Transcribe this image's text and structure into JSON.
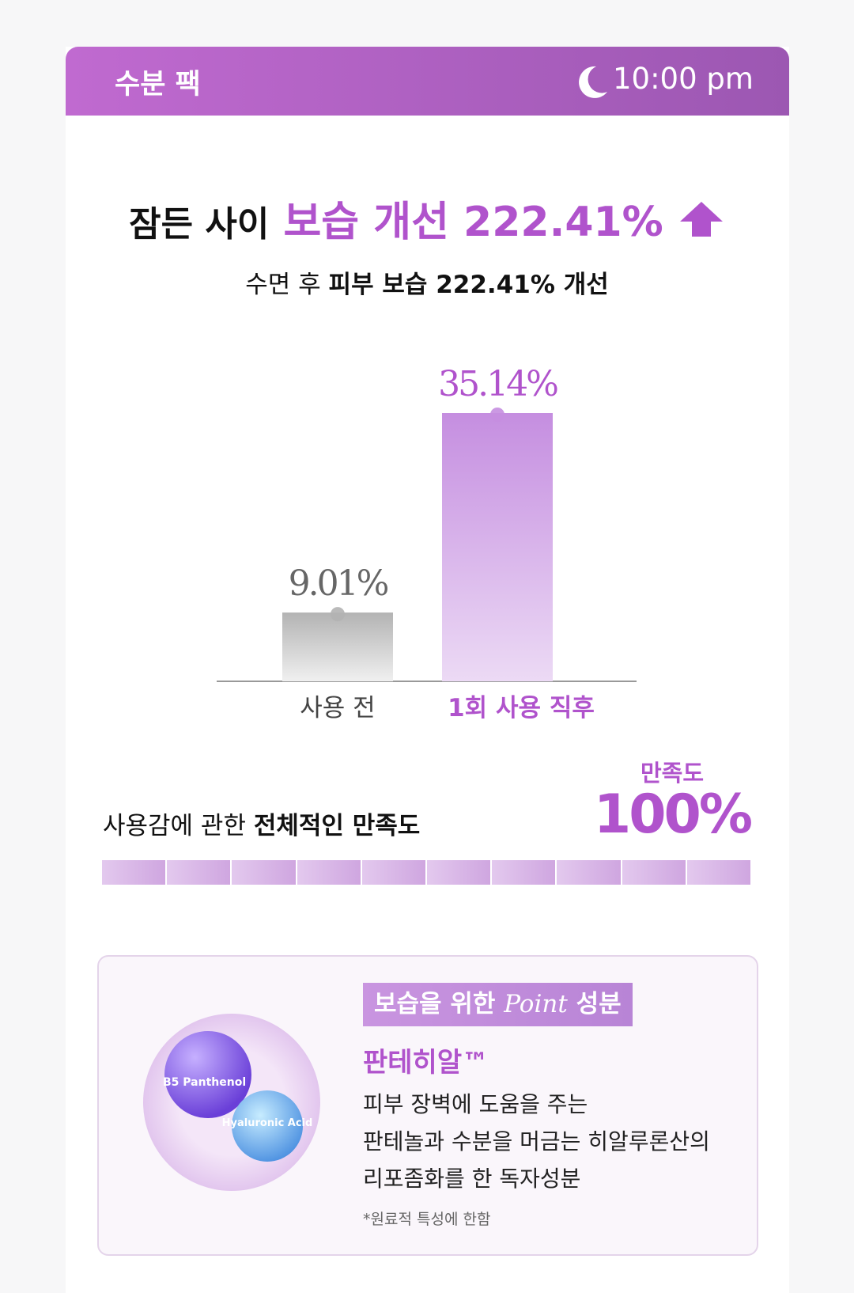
{
  "header": {
    "title": "수분 팩",
    "time": "10:00 pm"
  },
  "headline": {
    "prefix": "잠든 사이",
    "highlight": "보습 개선 222.41%"
  },
  "subtitle": {
    "plain": "수면 후",
    "bold": "피부 보습 222.41% 개선"
  },
  "chart_data": {
    "type": "bar",
    "categories": [
      "사용 전",
      "1회 사용 직후"
    ],
    "values": [
      9.01,
      35.14
    ],
    "value_labels": [
      "9.01%",
      "35.14%"
    ],
    "colors": [
      "#b3b3b3",
      "#c58ee0"
    ]
  },
  "satisfaction": {
    "text_plain": "사용감에 관한",
    "text_bold": "전체적인 만족도",
    "label": "만족도",
    "value": 100,
    "value_label": "100%"
  },
  "ingredient": {
    "tag": [
      "보습을 위한",
      "Point",
      "성분"
    ],
    "name": "판테히알™",
    "description": [
      "피부 장벽에 도움을 주는",
      "판테놀과 수분을 머금는 히알루론산의",
      "리포좀화를 한 독자성분"
    ],
    "footnote": "*원료적 특성에 한함",
    "image_labels": [
      "B5 Panthenol",
      "Hyaluronic Acid"
    ]
  }
}
